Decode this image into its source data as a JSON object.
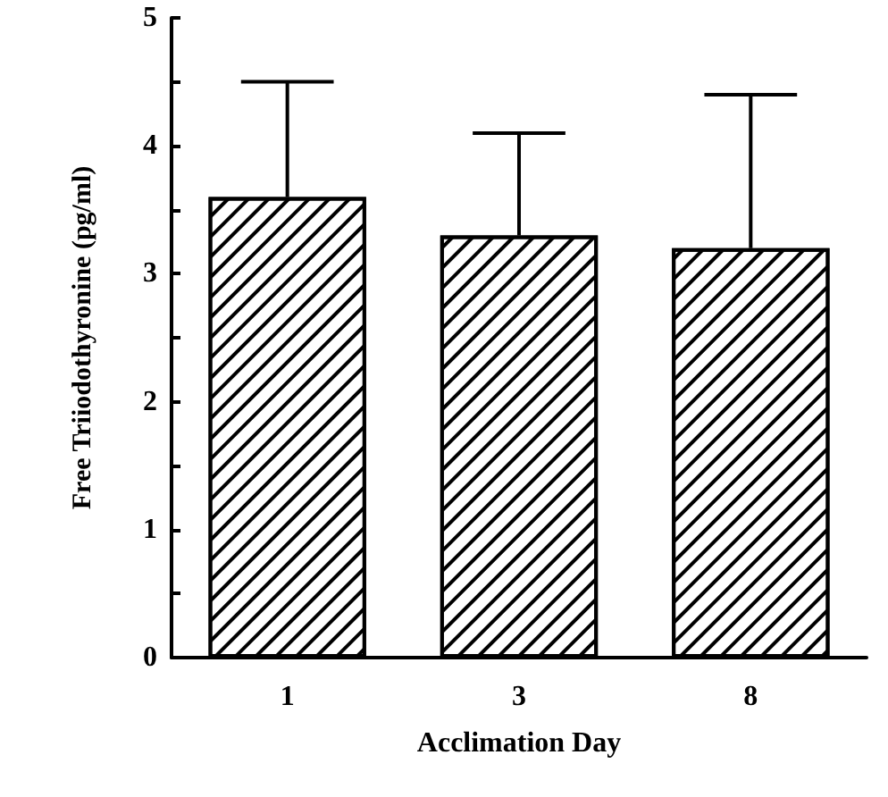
{
  "chart_data": {
    "type": "bar",
    "xlabel": "Acclimation Day",
    "ylabel": "Free Triiodothyronine (pg/ml)",
    "categories": [
      "1",
      "3",
      "8"
    ],
    "values": [
      3.6,
      3.3,
      3.2
    ],
    "errors": [
      [
        3.6,
        4.5
      ],
      [
        3.3,
        4.1
      ],
      [
        3.2,
        4.4
      ]
    ],
    "color": "#ffffff",
    "ylim": [
      0,
      5
    ],
    "yticks": [
      0,
      {
        "value": 0.5,
        "label": null
      },
      1,
      {
        "value": 1.5,
        "label": null
      },
      2,
      {
        "value": 2.5,
        "label": null
      },
      3,
      {
        "value": 3.5,
        "label": null
      },
      4,
      {
        "value": 4.5,
        "label": null
      },
      5
    ],
    "grid": false
  }
}
